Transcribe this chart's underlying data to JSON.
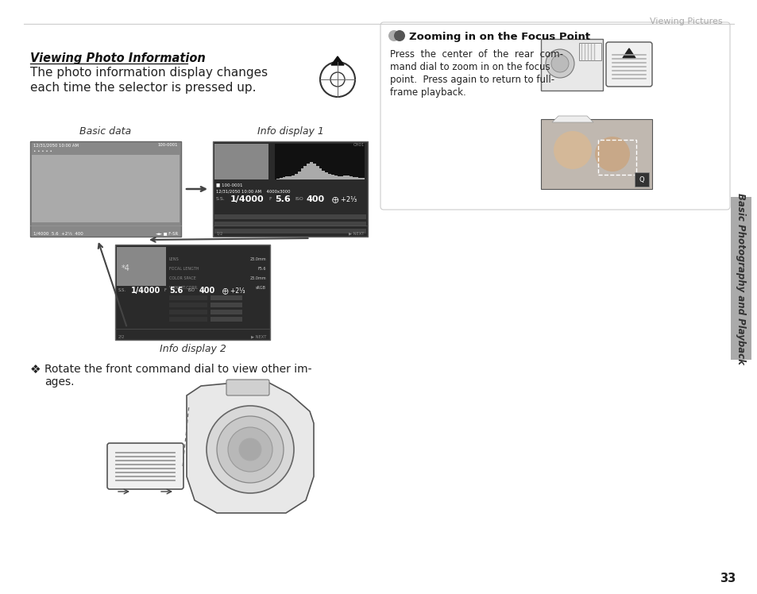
{
  "page_title": "Viewing Pictures",
  "page_number": "33",
  "bg_color": "#ffffff",
  "section_title": "Viewing Photo Information",
  "section_desc_line1": "The photo information display changes",
  "section_desc_line2": "each time the selector is pressed up.",
  "label_basic": "Basic data",
  "label_info1": "Info display 1",
  "label_info2": "Info display 2",
  "bullet_text_line1": "Rotate the front command dial to view other im-",
  "bullet_text_line2": "ages.",
  "zoom_box_title": "Zooming in on the Focus Point",
  "zoom_text_line1": "Press  the  center  of  the  rear  com-",
  "zoom_text_line2": "mand dial to zoom in on the focus",
  "zoom_text_line3": "point.  Press again to return to full-",
  "zoom_text_line4": "frame playback.",
  "sidebar_text": "Basic Photography and Playback",
  "divider_color": "#cccccc",
  "header_text_color": "#aaaaaa",
  "dark_screen_color": "#2a2a2a",
  "medium_screen_color": "#555555",
  "light_screen_color": "#888888",
  "lighter_screen_color": "#aaaaaa",
  "box_border_color": "#cccccc",
  "sidebar_color": "#aaaaaa"
}
